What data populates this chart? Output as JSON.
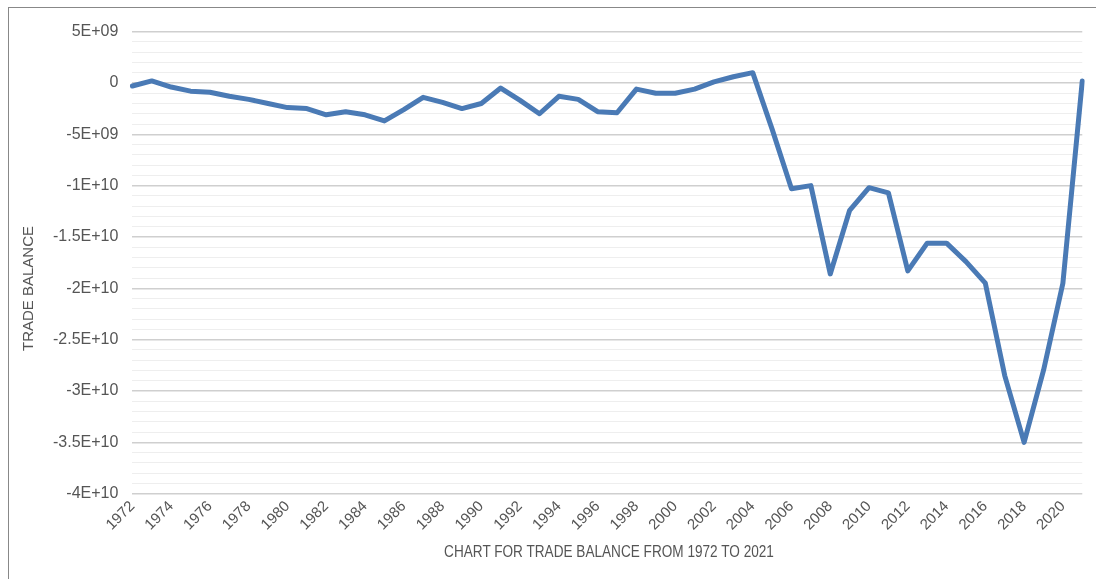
{
  "chart_data": {
    "type": "line",
    "xlabel": "CHART FOR TRADE BALANCE FROM 1972 TO 2021",
    "ylabel": "TRADE BALANCE",
    "categories": [
      "1972",
      null,
      "1974",
      null,
      "1976",
      null,
      "1978",
      null,
      "1980",
      null,
      "1982",
      null,
      "1984",
      null,
      "1986",
      null,
      "1988",
      null,
      "1990",
      null,
      "1992",
      null,
      "1994",
      null,
      "1996",
      null,
      "1998",
      null,
      "2000",
      null,
      "2002",
      null,
      "2004",
      null,
      "2006",
      null,
      "2008",
      null,
      "2010",
      null,
      "2012",
      null,
      "2014",
      null,
      "2016",
      null,
      "2018",
      null,
      "2020",
      null
    ],
    "series": [
      {
        "color": "#4a7ab5",
        "values": [
          -300000000.0,
          200000000.0,
          -400000000.0,
          -800000000.0,
          -900000000.0,
          -1300000000.0,
          -1600000000.0,
          -2000000000.0,
          -2400000000.0,
          -2500000000.0,
          -3100000000.0,
          -2800000000.0,
          -3100000000.0,
          -3700000000.0,
          -2600000000.0,
          -1400000000.0,
          -1900000000.0,
          -2500000000.0,
          -2000000000.0,
          -500000000.0,
          -1700000000.0,
          -3000000000.0,
          -1300000000.0,
          -1600000000.0,
          -2800000000.0,
          -2900000000.0,
          -600000000.0,
          -1000000000.0,
          -1000000000.0,
          -600000000.0,
          100000000.0,
          600000000.0,
          1000000000.0,
          -4500000000.0,
          -10300000000.0,
          -10000000000.0,
          -18600000000.0,
          -12400000000.0,
          -10200000000.0,
          -10700000000.0,
          -18300000000.0,
          -15600000000.0,
          -15600000000.0,
          -17400000000.0,
          -19500000000.0,
          -28500000000.0,
          -35000000000.0,
          -28000000000.0,
          -19500000000.0,
          200000000.0
        ]
      }
    ],
    "ylim": [
      -40000000000.0,
      5000000000.0
    ],
    "yticks": [
      {
        "value": 5000000000.0,
        "label": "5E+09"
      },
      {
        "value": 4000000000.0,
        "label": null
      },
      {
        "value": 3000000000.0,
        "label": null
      },
      {
        "value": 2000000000.0,
        "label": null
      },
      {
        "value": 1000000000.0,
        "label": null
      },
      0,
      {
        "value": -1000000000.0,
        "label": null
      },
      {
        "value": -2000000000.0,
        "label": null
      },
      {
        "value": -3000000000.0,
        "label": null
      },
      {
        "value": -4000000000.0,
        "label": null
      },
      {
        "value": -5000000000.0,
        "label": "-5E+09"
      },
      {
        "value": -6000000000.0,
        "label": null
      },
      {
        "value": -7000000000.0,
        "label": null
      },
      {
        "value": -8000000000.0,
        "label": null
      },
      {
        "value": -9000000000.0,
        "label": null
      },
      {
        "value": -10000000000.0,
        "label": "-1E+10"
      },
      {
        "value": -11000000000.0,
        "label": null
      },
      {
        "value": -12000000000.0,
        "label": null
      },
      {
        "value": -13000000000.0,
        "label": null
      },
      {
        "value": -14000000000.0,
        "label": null
      },
      {
        "value": -15000000000.0,
        "label": "-1.5E+10"
      },
      {
        "value": -16000000000.0,
        "label": null
      },
      {
        "value": -17000000000.0,
        "label": null
      },
      {
        "value": -18000000000.0,
        "label": null
      },
      {
        "value": -19000000000.0,
        "label": null
      },
      {
        "value": -20000000000.0,
        "label": "-2E+10"
      },
      {
        "value": -21000000000.0,
        "label": null
      },
      {
        "value": -22000000000.0,
        "label": null
      },
      {
        "value": -23000000000.0,
        "label": null
      },
      {
        "value": -24000000000.0,
        "label": null
      },
      {
        "value": -25000000000.0,
        "label": "-2.5E+10"
      },
      {
        "value": -26000000000.0,
        "label": null
      },
      {
        "value": -27000000000.0,
        "label": null
      },
      {
        "value": -28000000000.0,
        "label": null
      },
      {
        "value": -29000000000.0,
        "label": null
      },
      {
        "value": -30000000000.0,
        "label": "-3E+10"
      },
      {
        "value": -31000000000.0,
        "label": null
      },
      {
        "value": -32000000000.0,
        "label": null
      },
      {
        "value": -33000000000.0,
        "label": null
      },
      {
        "value": -34000000000.0,
        "label": null
      },
      {
        "value": -35000000000.0,
        "label": "-3.5E+10"
      },
      {
        "value": -36000000000.0,
        "label": null
      },
      {
        "value": -37000000000.0,
        "label": null
      },
      {
        "value": -38000000000.0,
        "label": null
      },
      {
        "value": -39000000000.0,
        "label": null
      },
      {
        "value": -40000000000.0,
        "label": "-4E+10"
      }
    ],
    "grid": "y",
    "legend": false,
    "marker": "none",
    "line_style": "solid"
  }
}
